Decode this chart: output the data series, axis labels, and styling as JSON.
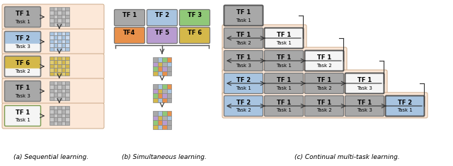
{
  "section_labels": [
    "(a) Sequential learning.",
    "(b) Simultaneous learning.",
    "(c) Continual multi-task learning."
  ],
  "colors": {
    "gray": "#a8a8a8",
    "blue": "#a8c4e0",
    "yellow": "#d4b84a",
    "orange": "#e8904a",
    "purple": "#b89cd0",
    "green": "#90c878",
    "white": "#f5f5f5",
    "greenish": "#c8c890",
    "box_bg": "#fce8d8",
    "grid_gray": "#b0b0b0",
    "grid_gray2": "#c8c8c8"
  }
}
